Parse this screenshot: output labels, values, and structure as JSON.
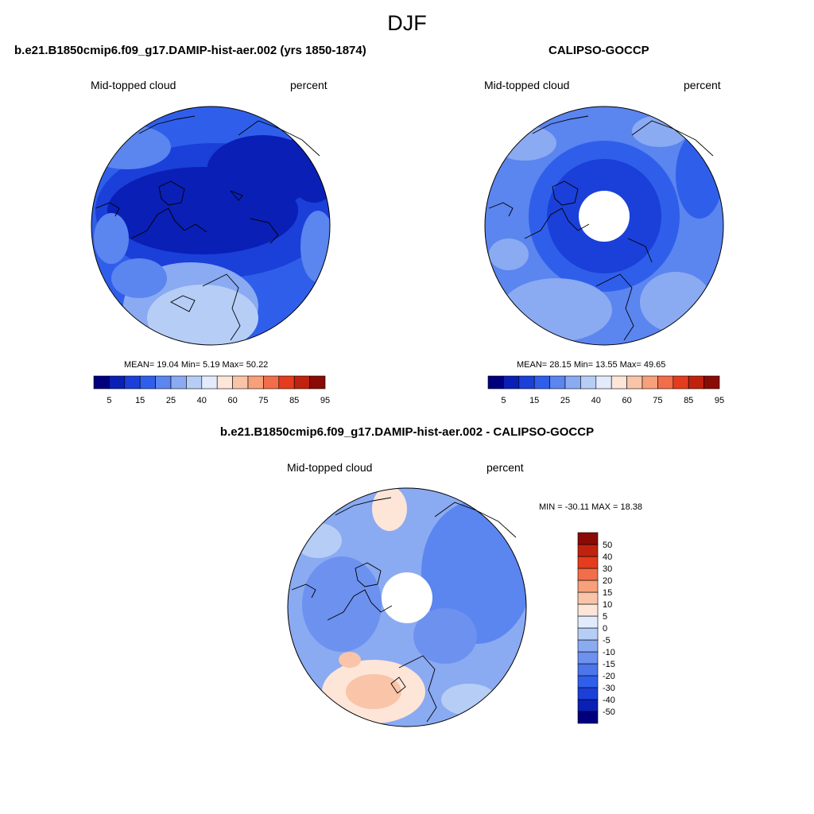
{
  "main_title": "DJF",
  "panels": [
    {
      "title": "b.e21.B1850cmip6.f09_g17.DAMIP-hist-aer.002 (yrs 1850-1874)",
      "left_label": "Mid-topped cloud",
      "right_label": "percent",
      "stats": "MEAN=  19.04  Min=   5.19  Max=  50.22",
      "has_hole": false
    },
    {
      "title": "CALIPSO-GOCCP",
      "left_label": "Mid-topped cloud",
      "right_label": "percent",
      "stats": "MEAN=  28.15  Min=  13.55  Max=  49.65",
      "has_hole": true
    },
    {
      "title": "b.e21.B1850cmip6.f09_g17.DAMIP-hist-aer.002 - CALIPSO-GOCCP",
      "left_label": "Mid-topped cloud",
      "right_label": "percent",
      "stats": "MIN = -30.11 MAX =  18.38",
      "has_hole": true
    }
  ],
  "abs_colorbar": {
    "colors": [
      "#00007f",
      "#0a1fb5",
      "#1b3fd9",
      "#2f5fea",
      "#5b85ef",
      "#8aaaf2",
      "#b6cdf6",
      "#e1ebfb",
      "#fde5d8",
      "#f9c4a8",
      "#f7a07b",
      "#f26d4a",
      "#e43c1c",
      "#c0220f",
      "#8a0b06"
    ],
    "tick_labels": [
      "5",
      "15",
      "25",
      "40",
      "60",
      "75",
      "85",
      "95"
    ]
  },
  "diff_colorbar": {
    "colors": [
      "#00007f",
      "#0a1fb5",
      "#1b3fd9",
      "#2f5fea",
      "#4d75ec",
      "#6d91ef",
      "#8aaaf2",
      "#b6cdf6",
      "#e1ebfb",
      "#fde5d8",
      "#f9c4a8",
      "#f7a07b",
      "#f26d4a",
      "#e43c1c",
      "#c0220f",
      "#8a0b06"
    ],
    "tick_labels": [
      "50",
      "40",
      "30",
      "20",
      "15",
      "10",
      "5",
      "0",
      "-5",
      "-10",
      "-15",
      "-20",
      "-30",
      "-40",
      "-50"
    ]
  }
}
